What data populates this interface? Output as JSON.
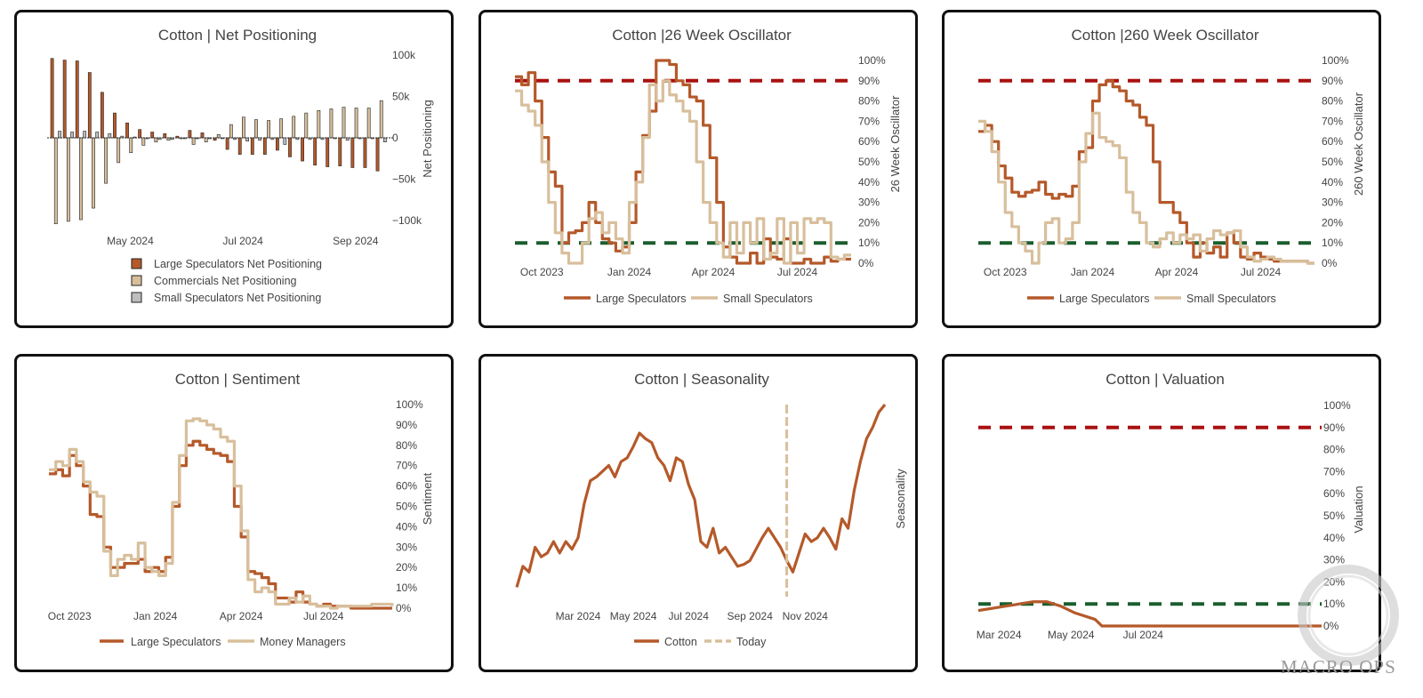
{
  "colors": {
    "large": "#b5592a",
    "comm": "#d8bf9c",
    "small": "#bdbdbd",
    "red": "#aa1111",
    "green": "#1b5e2e",
    "today": "#d8bf9c"
  },
  "brand": {
    "watermark": "MACRO OPS"
  },
  "chart_data": [
    {
      "id": "net",
      "type": "bar",
      "title": "Cotton | Net Positioning",
      "ylabel": "Net Positioning",
      "ylim": [
        -100000,
        100000
      ],
      "yticks": [
        {
          "v": 100000,
          "t": "100k"
        },
        {
          "v": 50000,
          "t": "50k"
        },
        {
          "v": 0,
          "t": "0"
        },
        {
          "v": -50000,
          "t": "−50k"
        },
        {
          "v": -100000,
          "t": "−100k"
        }
      ],
      "xticks": [
        {
          "i": 6,
          "t": "May 2024"
        },
        {
          "i": 15,
          "t": "Jul 2024"
        },
        {
          "i": 24,
          "t": "Sep 2024"
        }
      ],
      "series": [
        {
          "name": "Large Speculators Net Positioning",
          "values": [
            96000,
            94000,
            93000,
            79000,
            55000,
            30000,
            18000,
            10000,
            7000,
            5000,
            2000,
            9000,
            6000,
            -3000,
            -14000,
            -20000,
            -20000,
            -20000,
            -15000,
            -23000,
            -28000,
            -33000,
            -35000,
            -34000,
            -36000,
            -36000,
            -40000
          ]
        },
        {
          "name": "Commercials Net Positioning",
          "values": [
            -104000,
            -101000,
            -99000,
            -85000,
            -55000,
            -30000,
            -18000,
            -9000,
            -5000,
            -3000,
            -1000,
            -8000,
            -5000,
            4000,
            16000,
            25000,
            22000,
            21000,
            23000,
            26000,
            30000,
            33000,
            35000,
            37000,
            36000,
            36000,
            45000
          ]
        },
        {
          "name": "Small Speculators Net Positioning",
          "values": [
            8000,
            7000,
            8000,
            7000,
            5000,
            2000,
            1000,
            -1000,
            -2000,
            -2000,
            -1000,
            -1000,
            -1000,
            -1000,
            -2000,
            -4000,
            -3000,
            -2000,
            -8000,
            -2000,
            -2000,
            -2000,
            -1000,
            -3000,
            -1000,
            -1000,
            -5000
          ]
        }
      ]
    },
    {
      "id": "osc26",
      "type": "line",
      "title": "Cotton |26 Week Oscillator",
      "ylabel": "26 Week Oscillator",
      "ylim": [
        0,
        100
      ],
      "xlim": [
        0,
        50
      ],
      "thresholds": [
        90,
        10
      ],
      "yticks": [
        "0%",
        "10%",
        "20%",
        "30%",
        "40%",
        "50%",
        "60%",
        "70%",
        "80%",
        "90%",
        "100%"
      ],
      "xticks": [
        {
          "x": 4,
          "t": "Oct 2023"
        },
        {
          "x": 17,
          "t": "Jan 2024"
        },
        {
          "x": 29.5,
          "t": "Apr 2024"
        },
        {
          "x": 42,
          "t": "Jul 2024"
        }
      ],
      "series": [
        {
          "name": "Large Speculators",
          "x": [
            0,
            1,
            2,
            3,
            4,
            5,
            6,
            7,
            8,
            9,
            10,
            11,
            12,
            13,
            14,
            15,
            16,
            17,
            18,
            19,
            20,
            21,
            22,
            23,
            24,
            25,
            26,
            27,
            28,
            29,
            30,
            31,
            32,
            33,
            34,
            35,
            36,
            37,
            38,
            39,
            40,
            41,
            42,
            43,
            44,
            45,
            46,
            47,
            48,
            49,
            50
          ],
          "values": [
            92,
            88,
            94,
            80,
            62,
            45,
            38,
            10,
            15,
            16,
            20,
            30,
            20,
            12,
            10,
            6,
            8,
            20,
            45,
            63,
            75,
            100,
            100,
            98,
            90,
            88,
            82,
            80,
            68,
            52,
            30,
            8,
            3,
            0,
            0,
            5,
            0,
            12,
            3,
            2,
            12,
            0,
            0,
            2,
            0,
            0,
            3,
            1,
            2,
            2,
            2
          ]
        },
        {
          "name": "Small Speculators",
          "x": [
            0,
            1,
            2,
            3,
            4,
            5,
            6,
            7,
            8,
            9,
            10,
            11,
            12,
            13,
            14,
            15,
            16,
            17,
            18,
            19,
            20,
            21,
            22,
            23,
            24,
            25,
            26,
            27,
            28,
            29,
            30,
            31,
            32,
            33,
            34,
            35,
            36,
            37,
            38,
            39,
            40,
            41,
            42,
            43,
            44,
            45,
            46,
            47,
            48,
            49,
            50
          ],
          "values": [
            85,
            78,
            75,
            68,
            50,
            30,
            15,
            5,
            0,
            0,
            10,
            22,
            25,
            15,
            20,
            12,
            5,
            30,
            40,
            62,
            88,
            80,
            90,
            83,
            80,
            75,
            70,
            50,
            30,
            20,
            10,
            3,
            20,
            5,
            20,
            10,
            22,
            2,
            5,
            22,
            0,
            20,
            5,
            22,
            20,
            22,
            20,
            3,
            2,
            4,
            4
          ]
        }
      ]
    },
    {
      "id": "osc260",
      "type": "line",
      "title": "Cotton |260 Week Oscillator",
      "ylabel": "260 Week Oscillator",
      "ylim": [
        0,
        100
      ],
      "xlim": [
        0,
        50
      ],
      "thresholds": [
        90,
        10
      ],
      "yticks": [
        "0%",
        "10%",
        "20%",
        "30%",
        "40%",
        "50%",
        "60%",
        "70%",
        "80%",
        "90%",
        "100%"
      ],
      "xticks": [
        {
          "x": 4,
          "t": "Oct 2023"
        },
        {
          "x": 17,
          "t": "Jan 2024"
        },
        {
          "x": 29.5,
          "t": "Apr 2024"
        },
        {
          "x": 42,
          "t": "Jul 2024"
        }
      ],
      "series": [
        {
          "name": "Large Speculators",
          "x": [
            0,
            1,
            2,
            3,
            4,
            5,
            6,
            7,
            8,
            9,
            10,
            11,
            12,
            13,
            14,
            15,
            16,
            17,
            18,
            19,
            20,
            21,
            22,
            23,
            24,
            25,
            26,
            27,
            28,
            29,
            30,
            31,
            32,
            33,
            34,
            35,
            36,
            37,
            38,
            39,
            40,
            41,
            42,
            43,
            44,
            45,
            46,
            47,
            48,
            49,
            50
          ],
          "values": [
            65,
            68,
            60,
            48,
            42,
            35,
            33,
            35,
            36,
            40,
            34,
            32,
            34,
            33,
            38,
            55,
            57,
            80,
            88,
            90,
            87,
            85,
            80,
            78,
            72,
            68,
            50,
            30,
            30,
            25,
            20,
            10,
            3,
            10,
            5,
            8,
            3,
            15,
            10,
            3,
            2,
            5,
            3,
            2,
            1,
            1,
            1,
            1,
            1,
            0,
            0
          ]
        },
        {
          "name": "Small Speculators",
          "x": [
            0,
            1,
            2,
            3,
            4,
            5,
            6,
            7,
            8,
            9,
            10,
            11,
            12,
            13,
            14,
            15,
            16,
            17,
            18,
            19,
            20,
            21,
            22,
            23,
            24,
            25,
            26,
            27,
            28,
            29,
            30,
            31,
            32,
            33,
            34,
            35,
            36,
            37,
            38,
            39,
            40,
            41,
            42,
            43,
            44,
            45,
            46,
            47,
            48,
            49,
            50
          ],
          "values": [
            70,
            65,
            55,
            40,
            25,
            18,
            10,
            6,
            0,
            10,
            20,
            22,
            10,
            12,
            20,
            50,
            64,
            74,
            62,
            60,
            58,
            52,
            35,
            25,
            20,
            10,
            8,
            12,
            15,
            10,
            14,
            12,
            14,
            6,
            12,
            16,
            14,
            15,
            16,
            8,
            3,
            1,
            2,
            3,
            2,
            1,
            1,
            1,
            1,
            0,
            0
          ]
        }
      ]
    },
    {
      "id": "sent",
      "type": "line",
      "title": "Cotton | Sentiment",
      "ylabel": "Sentiment",
      "ylim": [
        0,
        100
      ],
      "xlim": [
        0,
        50
      ],
      "yticks": [
        "0%",
        "10%",
        "20%",
        "30%",
        "40%",
        "50%",
        "60%",
        "70%",
        "80%",
        "90%",
        "100%"
      ],
      "xticks": [
        {
          "x": 3,
          "t": "Oct 2023"
        },
        {
          "x": 15.5,
          "t": "Jan 2024"
        },
        {
          "x": 28,
          "t": "Apr 2024"
        },
        {
          "x": 40,
          "t": "Jul 2024"
        }
      ],
      "series": [
        {
          "name": "Large Speculators",
          "x": [
            0,
            1,
            2,
            3,
            4,
            5,
            6,
            7,
            8,
            9,
            10,
            11,
            12,
            13,
            14,
            15,
            16,
            17,
            18,
            19,
            20,
            21,
            22,
            23,
            24,
            25,
            26,
            27,
            28,
            29,
            30,
            31,
            32,
            33,
            34,
            35,
            36,
            37,
            38,
            39,
            40,
            41,
            42,
            43,
            44,
            45,
            46,
            47,
            48,
            49,
            50
          ],
          "values": [
            66,
            68,
            65,
            75,
            70,
            60,
            46,
            45,
            30,
            20,
            20,
            22,
            22,
            24,
            18,
            20,
            18,
            25,
            50,
            70,
            80,
            82,
            80,
            78,
            76,
            75,
            72,
            50,
            35,
            18,
            17,
            15,
            12,
            5,
            5,
            3,
            8,
            3,
            2,
            1,
            2,
            1,
            1,
            1,
            0,
            0,
            0,
            0,
            0,
            0,
            0
          ]
        },
        {
          "name": "Money Managers",
          "x": [
            0,
            1,
            2,
            3,
            4,
            5,
            6,
            7,
            8,
            9,
            10,
            11,
            12,
            13,
            14,
            15,
            16,
            17,
            18,
            19,
            20,
            21,
            22,
            23,
            24,
            25,
            26,
            27,
            28,
            29,
            30,
            31,
            32,
            33,
            34,
            35,
            36,
            37,
            38,
            39,
            40,
            41,
            42,
            43,
            44,
            45,
            46,
            47,
            48,
            49,
            50
          ],
          "values": [
            68,
            72,
            70,
            78,
            72,
            62,
            57,
            55,
            28,
            16,
            24,
            26,
            24,
            32,
            20,
            18,
            16,
            22,
            52,
            75,
            92,
            93,
            92,
            90,
            88,
            84,
            82,
            60,
            38,
            14,
            8,
            10,
            8,
            2,
            2,
            5,
            3,
            6,
            2,
            1,
            1,
            0,
            1,
            1,
            1,
            1,
            1,
            2,
            2,
            2,
            1
          ]
        }
      ]
    },
    {
      "id": "season",
      "type": "line",
      "title": "Cotton | Seasonality",
      "ylabel": "Seasonality",
      "xlim": [
        0,
        60
      ],
      "ylim": [
        0,
        100
      ],
      "today_x": 44,
      "xticks": [
        {
          "x": 10,
          "t": "Mar 2024"
        },
        {
          "x": 19,
          "t": "May 2024"
        },
        {
          "x": 28,
          "t": "Jul 2024"
        },
        {
          "x": 38,
          "t": "Sep 2024"
        },
        {
          "x": 47,
          "t": "Nov 2024"
        }
      ],
      "series": [
        {
          "name": "Cotton",
          "x": [
            0,
            1,
            2,
            3,
            4,
            5,
            6,
            7,
            8,
            9,
            10,
            11,
            12,
            13,
            14,
            15,
            16,
            17,
            18,
            19,
            20,
            21,
            22,
            23,
            24,
            25,
            26,
            27,
            28,
            29,
            30,
            31,
            32,
            33,
            34,
            35,
            36,
            37,
            38,
            39,
            40,
            41,
            42,
            43,
            44,
            45,
            46,
            47,
            48,
            49,
            50,
            51,
            52,
            53,
            54,
            55,
            56,
            57,
            58,
            59,
            60
          ],
          "values": [
            4,
            15,
            12,
            25,
            20,
            22,
            28,
            22,
            28,
            24,
            30,
            48,
            60,
            62,
            65,
            68,
            62,
            70,
            72,
            78,
            85,
            82,
            80,
            72,
            68,
            60,
            72,
            70,
            58,
            50,
            28,
            25,
            35,
            22,
            25,
            20,
            15,
            16,
            18,
            24,
            30,
            35,
            30,
            25,
            18,
            12,
            22,
            32,
            28,
            30,
            35,
            30,
            24,
            40,
            35,
            55,
            70,
            82,
            88,
            96,
            100
          ]
        },
        {
          "name": "Today",
          "x": [],
          "values": []
        }
      ]
    },
    {
      "id": "val",
      "type": "line",
      "title": "Cotton | Valuation",
      "ylabel": "Valuation",
      "ylim": [
        0,
        100
      ],
      "xlim": [
        0,
        50
      ],
      "thresholds": [
        90,
        10
      ],
      "yticks": [
        "0%",
        "10%",
        "20%",
        "30%",
        "40%",
        "50%",
        "60%",
        "70%",
        "80%",
        "90%",
        "100%"
      ],
      "xticks": [
        {
          "x": 3,
          "t": "Mar 2024"
        },
        {
          "x": 13.5,
          "t": "May 2024"
        },
        {
          "x": 24,
          "t": "Jul 2024"
        }
      ],
      "series": [
        {
          "name": "Valuation",
          "x": [
            0,
            2,
            4,
            6,
            8,
            10,
            12,
            14,
            16,
            17,
            18,
            50
          ],
          "values": [
            7,
            8,
            9,
            10,
            11,
            11,
            9,
            6,
            4,
            3,
            0,
            0
          ]
        }
      ]
    }
  ]
}
